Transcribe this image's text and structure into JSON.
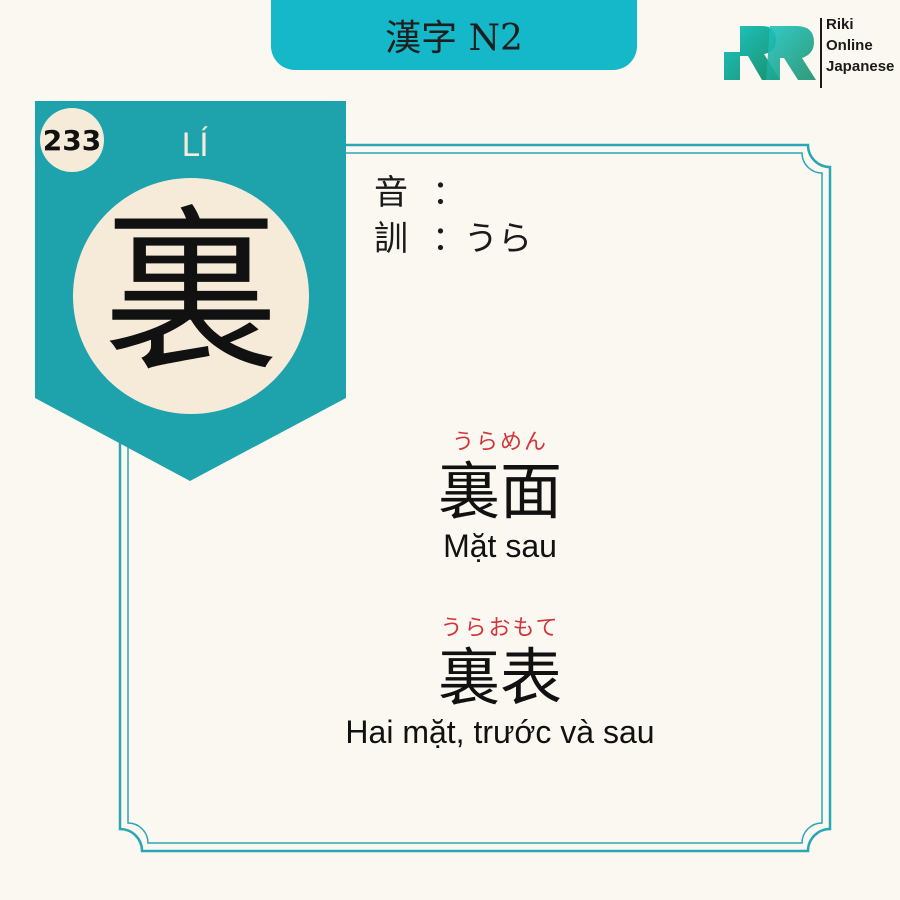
{
  "header": {
    "title": "漢字 N2"
  },
  "logo": {
    "lines": [
      "Riki",
      "Online",
      "Japanese"
    ]
  },
  "card": {
    "number": "233",
    "han_viet": "LÍ",
    "kanji": "裏",
    "on_label": "音",
    "on_reading": "",
    "kun_label": "訓",
    "kun_reading": "うら",
    "separator": "："
  },
  "vocab": [
    {
      "furigana": "うらめん",
      "word": "裏面",
      "meaning": "Mặt sau"
    },
    {
      "furigana": "うらおもて",
      "word": "裏表",
      "meaning": "Hai mặt, trước và sau"
    }
  ],
  "colors": {
    "teal": "#14b8c8",
    "ribbon": "#1ea3ad",
    "cream": "#f6ead8",
    "red": "#d2363a",
    "background": "#fbf8f2"
  }
}
